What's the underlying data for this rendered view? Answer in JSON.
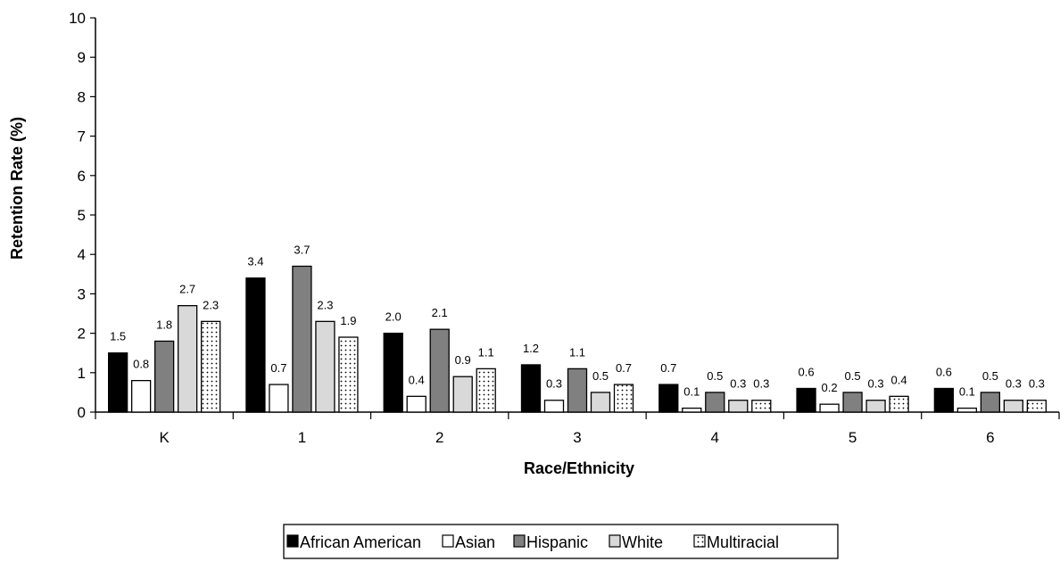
{
  "chart_data": {
    "type": "bar",
    "title": "",
    "xlabel": "Race/Ethnicity",
    "ylabel": "Retention Rate (%)",
    "ylim": [
      0,
      10
    ],
    "yticks": [
      0,
      1,
      2,
      3,
      4,
      5,
      6,
      7,
      8,
      9,
      10
    ],
    "grid": false,
    "legend_position": "bottom",
    "categories": [
      "K",
      "1",
      "2",
      "3",
      "4",
      "5",
      "6"
    ],
    "series": [
      {
        "name": "African American",
        "values": [
          1.5,
          3.4,
          2.0,
          1.2,
          0.7,
          0.6,
          0.6
        ],
        "labels": [
          "1.5",
          "3.4",
          "2.0",
          "1.2",
          "0.7",
          "0.6",
          "0.6"
        ],
        "fill": "#000000",
        "pattern": "solid"
      },
      {
        "name": "Asian",
        "values": [
          0.8,
          0.7,
          0.4,
          0.3,
          0.1,
          0.2,
          0.1
        ],
        "labels": [
          "0.8",
          "0.7",
          "0.4",
          "0.3",
          "0.1",
          "0.2",
          "0.1"
        ],
        "fill": "#ffffff",
        "pattern": "solid"
      },
      {
        "name": "Hispanic",
        "values": [
          1.8,
          3.7,
          2.1,
          1.1,
          0.5,
          0.5,
          0.5
        ],
        "labels": [
          "1.8",
          "3.7",
          "2.1",
          "1.1",
          "0.5",
          "0.5",
          "0.5"
        ],
        "fill": "#808080",
        "pattern": "solid"
      },
      {
        "name": "White",
        "values": [
          2.7,
          2.3,
          0.9,
          0.5,
          0.3,
          0.3,
          0.3
        ],
        "labels": [
          "2.7",
          "2.3",
          "0.9",
          "0.5",
          "0.3",
          "0.3",
          "0.3"
        ],
        "fill": "#d9d9d9",
        "pattern": "solid"
      },
      {
        "name": "Multiracial",
        "values": [
          2.3,
          1.9,
          1.1,
          0.7,
          0.3,
          0.4,
          0.3
        ],
        "labels": [
          "2.3",
          "1.9",
          "1.1",
          "0.7",
          "0.3",
          "0.4",
          "0.3"
        ],
        "fill": "#ffffff",
        "pattern": "dots"
      }
    ]
  }
}
